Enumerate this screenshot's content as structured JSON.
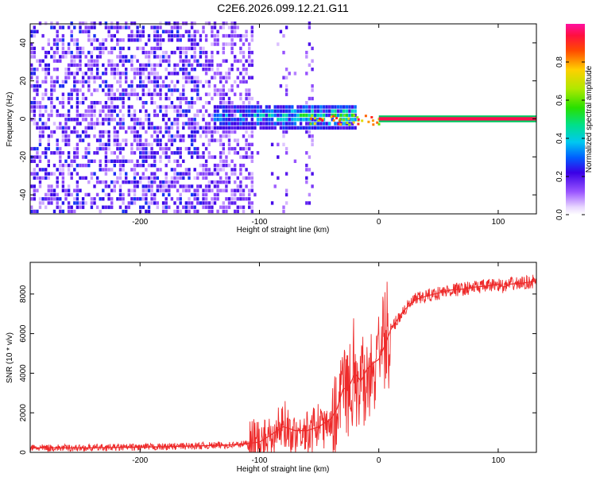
{
  "title": "C2E6.2026.099.12.21.G11",
  "chart_data": [
    {
      "type": "heatmap",
      "xlabel": "Height of straight line (km)",
      "ylabel": "Frequency (Hz)",
      "xlim": [
        -292,
        132
      ],
      "ylim": [
        -50,
        50
      ],
      "xticks": [
        -200,
        -100,
        0,
        100
      ],
      "yticks": [
        -40,
        -20,
        0,
        20,
        40
      ],
      "colorbar": {
        "label": "Normalized spectral amplitude",
        "range": [
          0,
          1
        ],
        "ticks": [
          0.0,
          0.2,
          0.4,
          0.6,
          0.8
        ],
        "tick_labels": [
          "0.0",
          "0.2",
          "0.4",
          "0.6",
          "0.8"
        ]
      },
      "features": [
        {
          "name": "narrowband tone",
          "x_from": -60,
          "x_to": 132,
          "frequency": 0,
          "amplitude": 0.95
        },
        {
          "name": "broadband noise",
          "x_from": -292,
          "x_to": -105,
          "amplitude": 0.15
        }
      ]
    },
    {
      "type": "line",
      "xlabel": "Height of straight line (km)",
      "ylabel": "SNR (10 * v/v)",
      "xlim": [
        -292,
        132
      ],
      "ylim": [
        0,
        9600
      ],
      "xticks": [
        -200,
        -100,
        0,
        100
      ],
      "yticks": [
        0,
        2000,
        4000,
        6000,
        8000
      ],
      "color": "#ee2a2a",
      "series": [
        {
          "name": "SNR",
          "x": [
            -292,
            -250,
            -200,
            -170,
            -150,
            -120,
            -100,
            -90,
            -80,
            -70,
            -60,
            -50,
            -40,
            -35,
            -30,
            -25,
            -20,
            -15,
            -10,
            -5,
            0,
            5,
            10,
            20,
            30,
            40,
            50,
            60,
            70,
            80,
            90,
            95,
            100,
            105,
            110,
            120,
            132
          ],
          "values": [
            220,
            230,
            260,
            300,
            330,
            380,
            520,
            900,
            1300,
            1100,
            1100,
            1300,
            1700,
            2200,
            3200,
            3300,
            4000,
            3600,
            4200,
            4500,
            4700,
            5400,
            6200,
            7100,
            7700,
            7900,
            8050,
            8200,
            8250,
            8350,
            8400,
            8450,
            8500,
            8350,
            8500,
            8550,
            8650
          ]
        }
      ]
    }
  ]
}
